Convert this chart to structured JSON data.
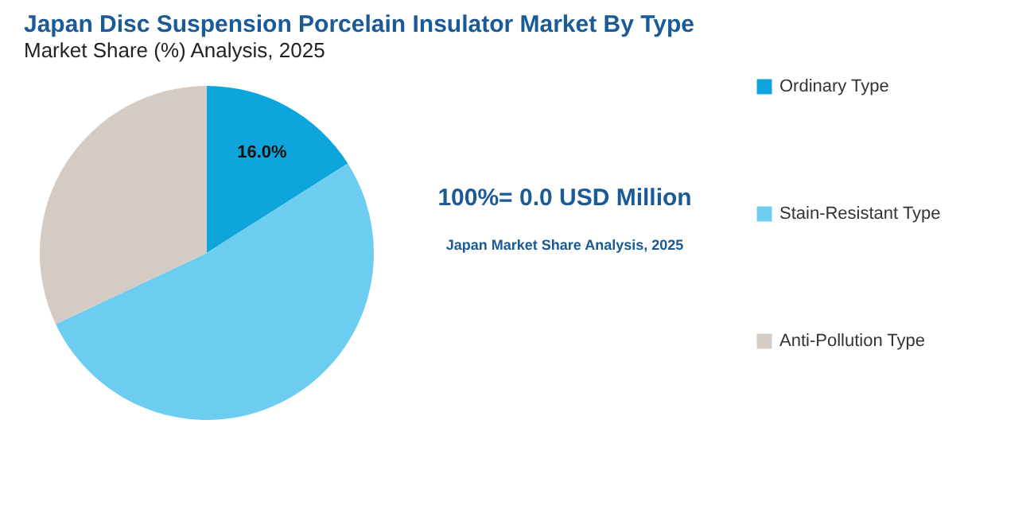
{
  "chart_data": {
    "type": "pie",
    "title": "Japan Disc Suspension Porcelain Insulator Market By Type",
    "subtitle": "Market Share (%) Analysis, 2025",
    "categories": [
      "Ordinary Type",
      "Stain-Resistant Type",
      "Anti-Pollution Type"
    ],
    "values": [
      16.0,
      52.0,
      32.0
    ],
    "colors": [
      "#0ea5dc",
      "#6dcdf1",
      "#d5cbc5"
    ],
    "value_labels": [
      "16.0%",
      null,
      null
    ],
    "legend": "right",
    "annotations": [
      "100%= 0.0 USD Million",
      "Japan Market Share Analysis, 2025"
    ]
  }
}
